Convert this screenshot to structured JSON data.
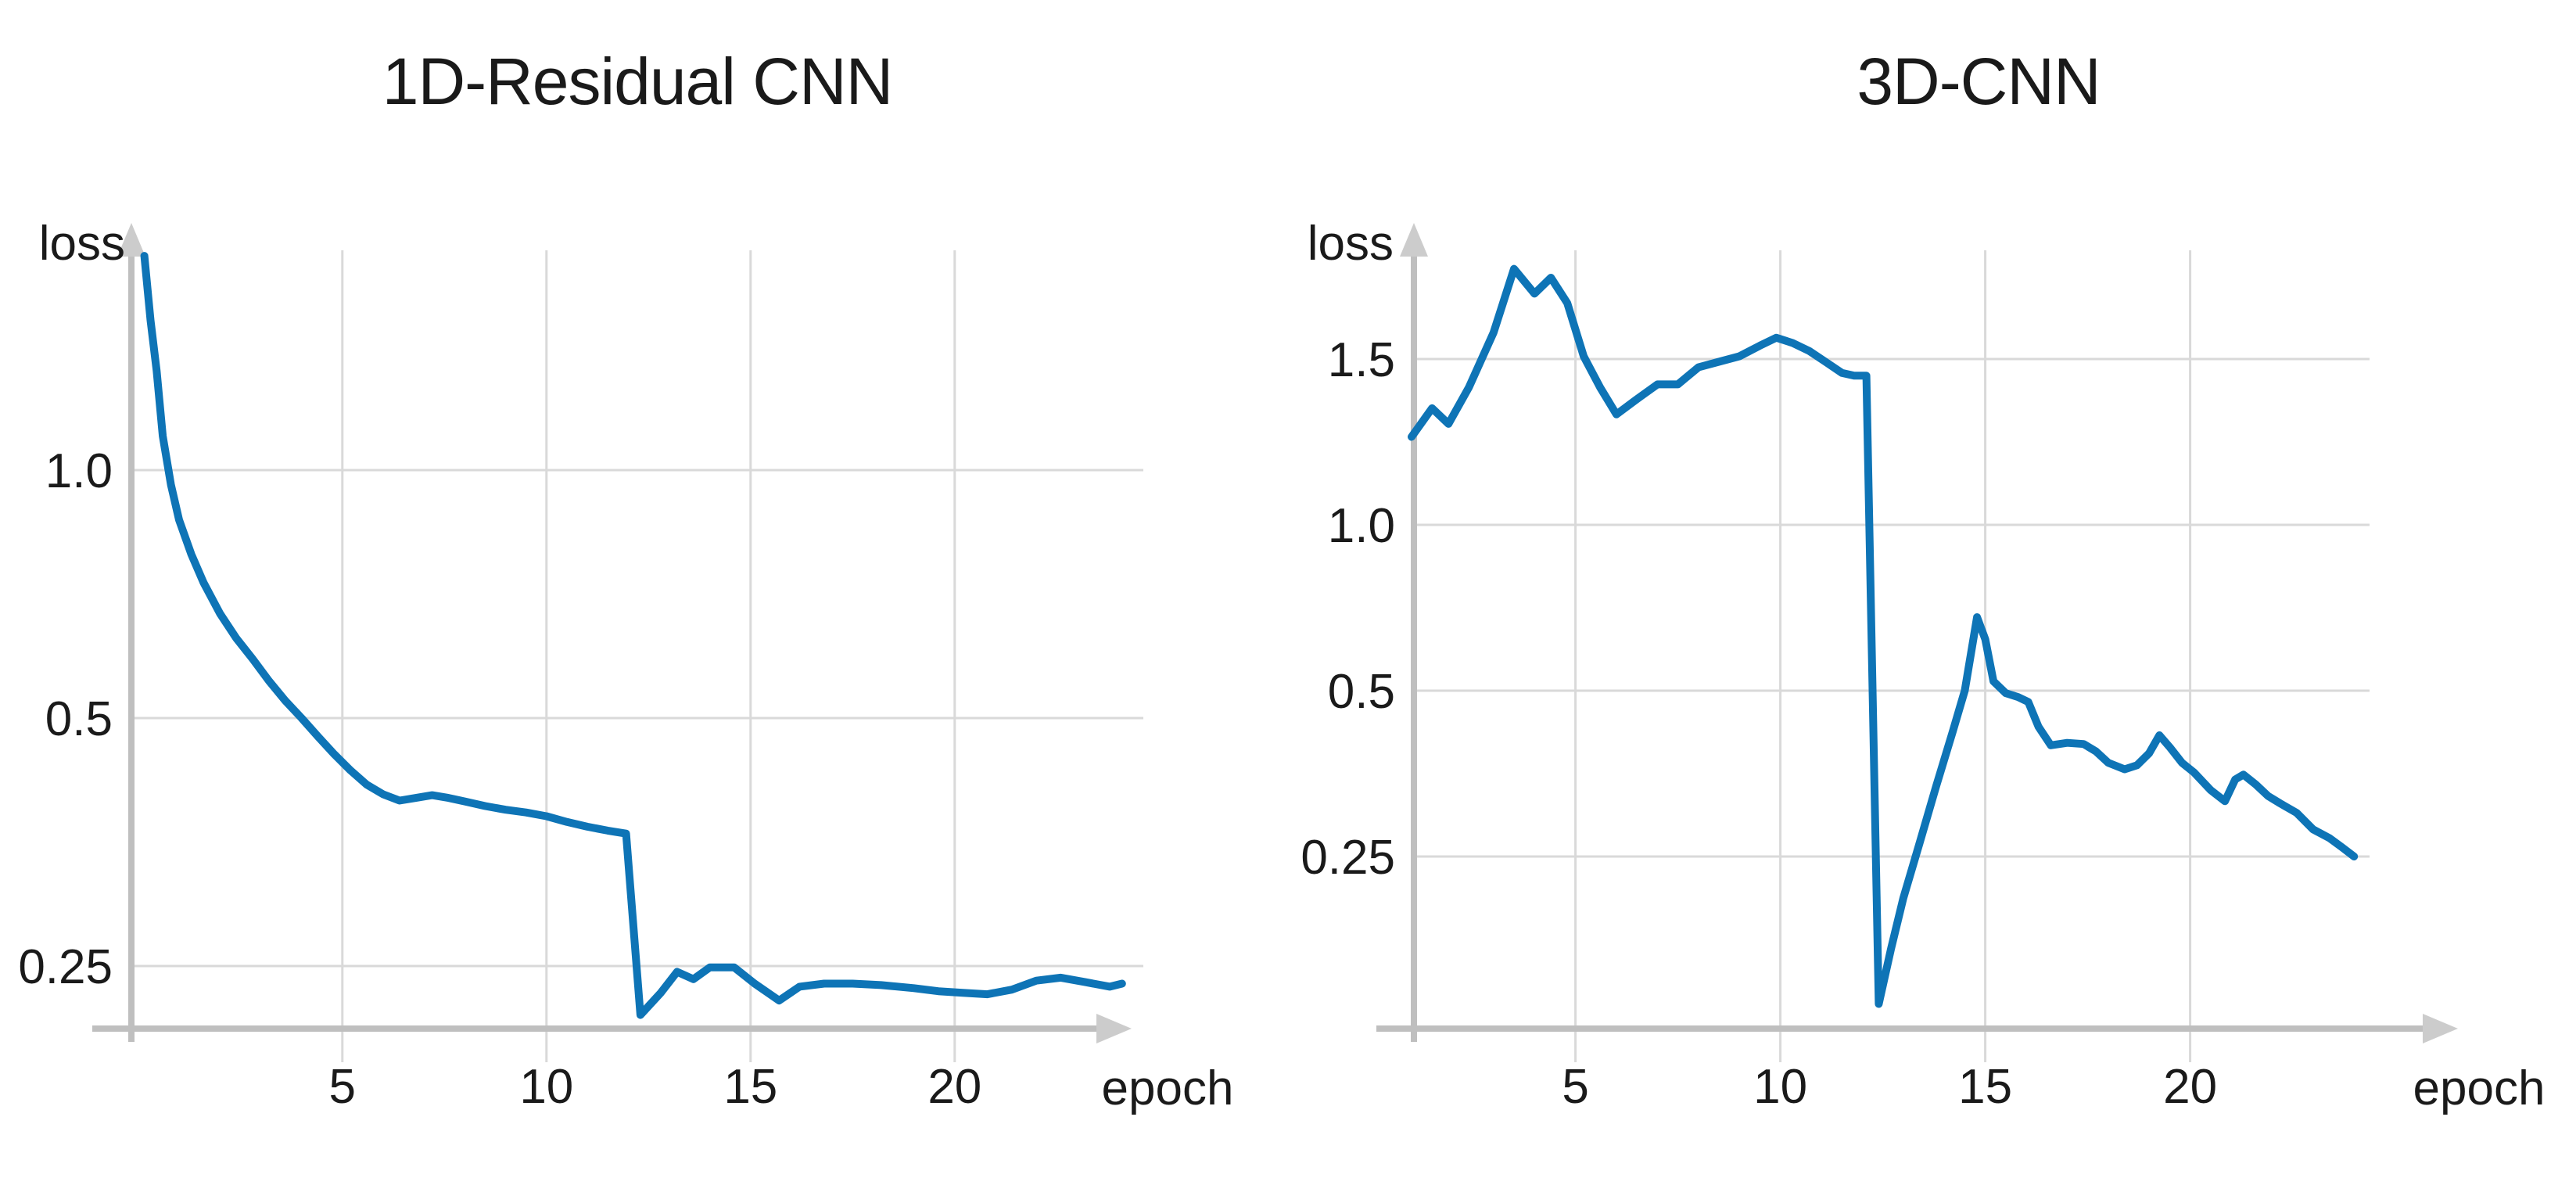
{
  "page": {
    "background_color": "#ffffff",
    "text_color": "#1a1a1a",
    "gridline_color": "#d9d9d9",
    "axis_color": "#bfbfbf"
  },
  "chart_data": [
    {
      "type": "line",
      "title": "1D-Residual CNN",
      "xlabel": "epoch",
      "ylabel": "loss",
      "line_color": "#0e74b6",
      "x_ticks": [
        5,
        10,
        15,
        20
      ],
      "x_tick_labels": [
        "5",
        "10",
        "15",
        "20"
      ],
      "y_ticks": [
        0.25,
        0.5,
        1.0
      ],
      "y_tick_labels": [
        "0.25",
        "0.5",
        "1.0"
      ],
      "y_scale": "log-like, tick labels equally spaced",
      "x_range": [
        0,
        24.5
      ],
      "grid": true,
      "legend": "none",
      "series": [
        {
          "points": [
            [
              0.15,
              1.82
            ],
            [
              0.3,
              1.52
            ],
            [
              0.45,
              1.32
            ],
            [
              0.6,
              1.1
            ],
            [
              0.8,
              0.96
            ],
            [
              1,
              0.87
            ],
            [
              1.3,
              0.79
            ],
            [
              1.6,
              0.73
            ],
            [
              2,
              0.67
            ],
            [
              2.4,
              0.625
            ],
            [
              2.8,
              0.59
            ],
            [
              3.2,
              0.555
            ],
            [
              3.6,
              0.525
            ],
            [
              4,
              0.5
            ],
            [
              4.4,
              0.475
            ],
            [
              4.8,
              0.452
            ],
            [
              5.2,
              0.432
            ],
            [
              5.6,
              0.415
            ],
            [
              6,
              0.404
            ],
            [
              6.4,
              0.397
            ],
            [
              6.8,
              0.4
            ],
            [
              7.2,
              0.403
            ],
            [
              7.6,
              0.4
            ],
            [
              8,
              0.396
            ],
            [
              8.5,
              0.391
            ],
            [
              9,
              0.387
            ],
            [
              9.5,
              0.384
            ],
            [
              10,
              0.38
            ],
            [
              10.5,
              0.374
            ],
            [
              11,
              0.369
            ],
            [
              11.5,
              0.365
            ],
            [
              11.95,
              0.362
            ],
            [
              12.3,
              0.218
            ],
            [
              12.8,
              0.232
            ],
            [
              13.2,
              0.246
            ],
            [
              13.6,
              0.241
            ],
            [
              14,
              0.249
            ],
            [
              14.6,
              0.249
            ],
            [
              15.1,
              0.238
            ],
            [
              15.7,
              0.227
            ],
            [
              16.2,
              0.236
            ],
            [
              16.8,
              0.238
            ],
            [
              17.5,
              0.238
            ],
            [
              18.2,
              0.237
            ],
            [
              19,
              0.235
            ],
            [
              19.6,
              0.233
            ],
            [
              20.2,
              0.232
            ],
            [
              20.8,
              0.231
            ],
            [
              21.4,
              0.234
            ],
            [
              22,
              0.24
            ],
            [
              22.6,
              0.242
            ],
            [
              23.2,
              0.239
            ],
            [
              23.8,
              0.236
            ],
            [
              24.1,
              0.238
            ]
          ]
        }
      ]
    },
    {
      "type": "line",
      "title": "3D-CNN",
      "xlabel": "epoch",
      "ylabel": "loss",
      "line_color": "#0e74b6",
      "x_ticks": [
        5,
        10,
        15,
        20
      ],
      "x_tick_labels": [
        "5",
        "10",
        "15",
        "20"
      ],
      "y_ticks": [
        0.25,
        0.5,
        1.0,
        1.5
      ],
      "y_tick_labels": [
        "0.25",
        "0.5",
        "1.0",
        "1.5"
      ],
      "y_scale": "log-like, tick labels equally spaced",
      "x_range": [
        1,
        24
      ],
      "grid": true,
      "legend": "none",
      "series": [
        {
          "points": [
            [
              1,
              1.24
            ],
            [
              1.5,
              1.33
            ],
            [
              1.9,
              1.28
            ],
            [
              2.4,
              1.4
            ],
            [
              3,
              1.6
            ],
            [
              3.5,
              1.87
            ],
            [
              4,
              1.76
            ],
            [
              4.4,
              1.83
            ],
            [
              4.8,
              1.72
            ],
            [
              5.2,
              1.51
            ],
            [
              5.6,
              1.4
            ],
            [
              6,
              1.31
            ],
            [
              6.5,
              1.36
            ],
            [
              7,
              1.41
            ],
            [
              7.5,
              1.41
            ],
            [
              8,
              1.47
            ],
            [
              8.5,
              1.49
            ],
            [
              9,
              1.51
            ],
            [
              9.5,
              1.55
            ],
            [
              9.9,
              1.58
            ],
            [
              10.3,
              1.56
            ],
            [
              10.7,
              1.53
            ],
            [
              11.1,
              1.49
            ],
            [
              11.5,
              1.45
            ],
            [
              11.8,
              1.44
            ],
            [
              12.1,
              1.44
            ],
            [
              12.4,
              0.135
            ],
            [
              12.7,
              0.17
            ],
            [
              13,
              0.21
            ],
            [
              13.4,
              0.265
            ],
            [
              13.8,
              0.335
            ],
            [
              14.2,
              0.42
            ],
            [
              14.5,
              0.5
            ],
            [
              14.8,
              0.68
            ],
            [
              15.0,
              0.62
            ],
            [
              15.2,
              0.52
            ],
            [
              15.5,
              0.495
            ],
            [
              15.8,
              0.487
            ],
            [
              16.05,
              0.477
            ],
            [
              16.3,
              0.43
            ],
            [
              16.6,
              0.398
            ],
            [
              17,
              0.402
            ],
            [
              17.4,
              0.4
            ],
            [
              17.7,
              0.388
            ],
            [
              18,
              0.37
            ],
            [
              18.4,
              0.36
            ],
            [
              18.7,
              0.366
            ],
            [
              19,
              0.385
            ],
            [
              19.25,
              0.415
            ],
            [
              19.5,
              0.395
            ],
            [
              19.8,
              0.37
            ],
            [
              20.1,
              0.355
            ],
            [
              20.5,
              0.33
            ],
            [
              20.85,
              0.315
            ],
            [
              21.1,
              0.345
            ],
            [
              21.3,
              0.352
            ],
            [
              21.6,
              0.338
            ],
            [
              21.9,
              0.322
            ],
            [
              22.2,
              0.312
            ],
            [
              22.6,
              0.3
            ],
            [
              23,
              0.28
            ],
            [
              23.4,
              0.27
            ],
            [
              23.7,
              0.26
            ],
            [
              24,
              0.25
            ]
          ]
        }
      ]
    }
  ]
}
